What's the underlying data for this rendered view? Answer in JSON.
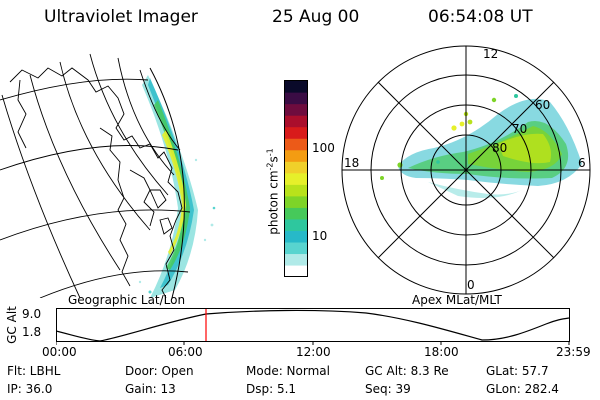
{
  "header": {
    "instrument": "Ultraviolet Imager",
    "date": "25 Aug 00",
    "time": "06:54:08 UT"
  },
  "geo_panel": {
    "label": "Geographic Lat/Lon"
  },
  "polar_panel": {
    "label": "Apex MLat/MLT",
    "mlt_labels": [
      "12",
      "18",
      "6",
      "0"
    ],
    "mlat_labels": [
      "60",
      "70",
      "80"
    ]
  },
  "colorbar": {
    "unit_label": "photon cm",
    "unit_sup1": "-2",
    "unit_mid": "s",
    "unit_sup2": "-1",
    "ticks": [
      "100",
      "10"
    ],
    "colors": [
      "#ffffff",
      "#b0eae8",
      "#58d4cf",
      "#27b9c8",
      "#2ec79e",
      "#46c95a",
      "#7ed428",
      "#b8e21b",
      "#e6f02a",
      "#f0d02a",
      "#f39c12",
      "#ec5a18",
      "#d81b1b",
      "#aa0e2c",
      "#6e0c3e",
      "#3a0c44",
      "#0a0a2a"
    ]
  },
  "altitude_plot": {
    "ylabel": "GC Alt",
    "yticks": [
      "9.0",
      "1.8"
    ],
    "xticks": [
      "00:00",
      "06:00",
      "12:00",
      "18:00",
      "23:59"
    ],
    "marker_color": "#ff0000"
  },
  "status": {
    "filter": "Flt: LBHL",
    "door": "Door: Open",
    "mode": "Mode: Normal",
    "gc_alt": "GC Alt: 8.3 Re",
    "glat": "GLat:  57.7",
    "ip": "IP: 36.0",
    "gain": "Gain: 13",
    "dsp": "Dsp:    5.1",
    "seq": "Seq: 39",
    "glon": "GLon: 282.4"
  }
}
